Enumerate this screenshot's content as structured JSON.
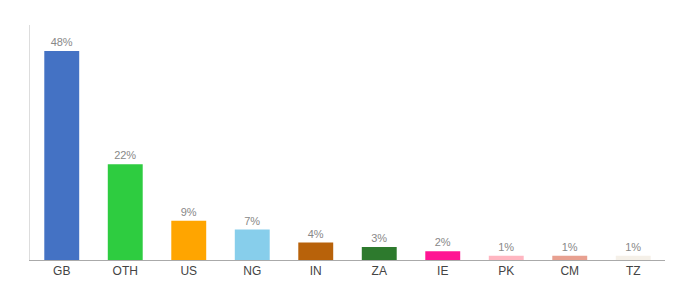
{
  "chart_data": {
    "type": "bar",
    "categories": [
      "GB",
      "OTH",
      "US",
      "NG",
      "IN",
      "ZA",
      "IE",
      "PK",
      "CM",
      "TZ"
    ],
    "values": [
      48,
      22,
      9,
      7,
      4,
      3,
      2,
      1,
      1,
      1
    ],
    "value_labels": [
      "48%",
      "22%",
      "9%",
      "7%",
      "4%",
      "3%",
      "2%",
      "1%",
      "1%",
      "1%"
    ],
    "colors": [
      "#4472C4",
      "#2ECC40",
      "#FFA500",
      "#87CEEB",
      "#B8620A",
      "#2D7A2D",
      "#FF1493",
      "#FFB6C1",
      "#E8A090",
      "#F5F0E8"
    ],
    "ylim": [
      0,
      54
    ],
    "grid": false,
    "data_labels": true,
    "tick_labels": "x"
  }
}
